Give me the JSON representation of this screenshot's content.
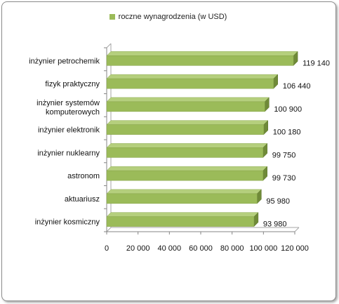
{
  "chart_data": {
    "type": "bar",
    "orientation": "horizontal",
    "bar_style": "3d",
    "categories": [
      "inżynier petrochemik",
      "fizyk praktyczny",
      "inżynier systemów komputerowych",
      "inżynier elektronik",
      "inżynier nuklearny",
      "astronom",
      "aktuariusz",
      "inżynier kosmiczny"
    ],
    "series": [
      {
        "name": "roczne wynagrodzenia (w USD)",
        "values": [
          119140,
          106440,
          100900,
          100180,
          99750,
          99730,
          95980,
          93980
        ],
        "data_labels": [
          "119 140",
          "106 440",
          "100 900",
          "100 180",
          "99 750",
          "99 730",
          "95 980",
          "93 980"
        ],
        "color": "#9bbb59"
      }
    ],
    "xlim": [
      0,
      120000
    ],
    "xticks": [
      0,
      20000,
      40000,
      60000,
      80000,
      100000,
      120000
    ],
    "xtick_labels": [
      "0",
      "20 000",
      "40 000",
      "60 000",
      "80 000",
      "100 000",
      "120 000"
    ],
    "grid": false,
    "legend_position": "top",
    "title": "",
    "xlabel": "",
    "ylabel": ""
  }
}
